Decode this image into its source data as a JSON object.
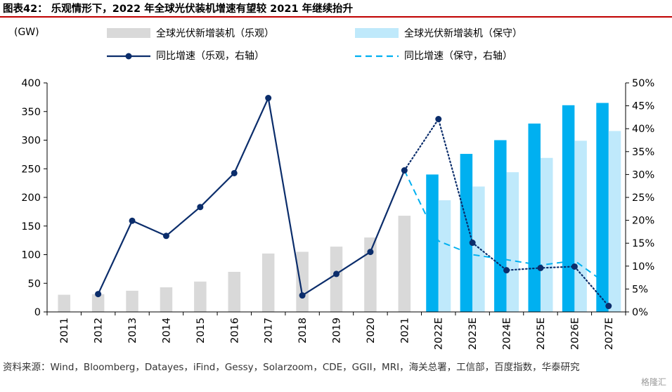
{
  "title": "图表42： 乐观情形下，2022 年全球光伏装机增速有望较 2021 年继续抬升",
  "source": "资料来源：Wind，Bloomberg，Datayes，iFind，Gessy，Solarzoom，CDE，GGII，MRI，海关总署，工信部，百度指数，华泰研究",
  "watermark": "格隆汇",
  "colors": {
    "title_rule": "#c00000",
    "bar_actual": "#d9d9d9",
    "bar_optimistic": "#00b0f0",
    "bar_conservative": "#bfe9fb",
    "line_optimistic": "#0b2d6b",
    "line_conservative": "#00b0f0"
  },
  "chart_data": {
    "type": "bar",
    "ylabel": "(GW)",
    "ylim": [
      0,
      400
    ],
    "y_ticks": [
      "0",
      "50",
      "100",
      "150",
      "200",
      "250",
      "300",
      "350",
      "400"
    ],
    "y2lim": [
      0,
      50
    ],
    "y2_ticks": [
      "0%",
      "5%",
      "10%",
      "15%",
      "20%",
      "25%",
      "30%",
      "35%",
      "40%",
      "45%",
      "50%"
    ],
    "categories": [
      "2011",
      "2012",
      "2013",
      "2014",
      "2015",
      "2016",
      "2017",
      "2018",
      "2019",
      "2020",
      "2021",
      "2022E",
      "2023E",
      "2024E",
      "2025E",
      "2026E",
      "2027E"
    ],
    "legend": [
      "全球光伏新增装机（乐观）",
      "全球光伏新增装机（保守）",
      "同比增速（乐观，右轴）",
      "同比增速（保守，右轴）"
    ],
    "series": [
      {
        "name": "全球光伏新增装机（乐观）",
        "axis": "left",
        "kind": "bar",
        "values": [
          30,
          31,
          37,
          43,
          53,
          70,
          102,
          105,
          114,
          130,
          168,
          240,
          276,
          300,
          329,
          361,
          365
        ]
      },
      {
        "name": "全球光伏新增装机（保守）",
        "axis": "left",
        "kind": "bar",
        "values": [
          null,
          null,
          null,
          null,
          null,
          null,
          null,
          null,
          null,
          null,
          null,
          195,
          219,
          244,
          269,
          299,
          316
        ]
      },
      {
        "name": "同比增速（乐观，右轴）",
        "axis": "right",
        "kind": "line",
        "values": [
          null,
          3.9,
          19.9,
          16.6,
          22.9,
          30.3,
          46.7,
          3.6,
          8.3,
          13.1,
          30.9,
          42.1,
          15.1,
          9.1,
          9.6,
          9.9,
          1.3
        ]
      },
      {
        "name": "同比增速（保守，右轴）",
        "axis": "right",
        "kind": "line",
        "values": [
          null,
          null,
          null,
          null,
          null,
          null,
          null,
          null,
          null,
          null,
          30.9,
          15.5,
          12.5,
          11.4,
          10.2,
          11.2,
          5.8
        ]
      }
    ]
  }
}
